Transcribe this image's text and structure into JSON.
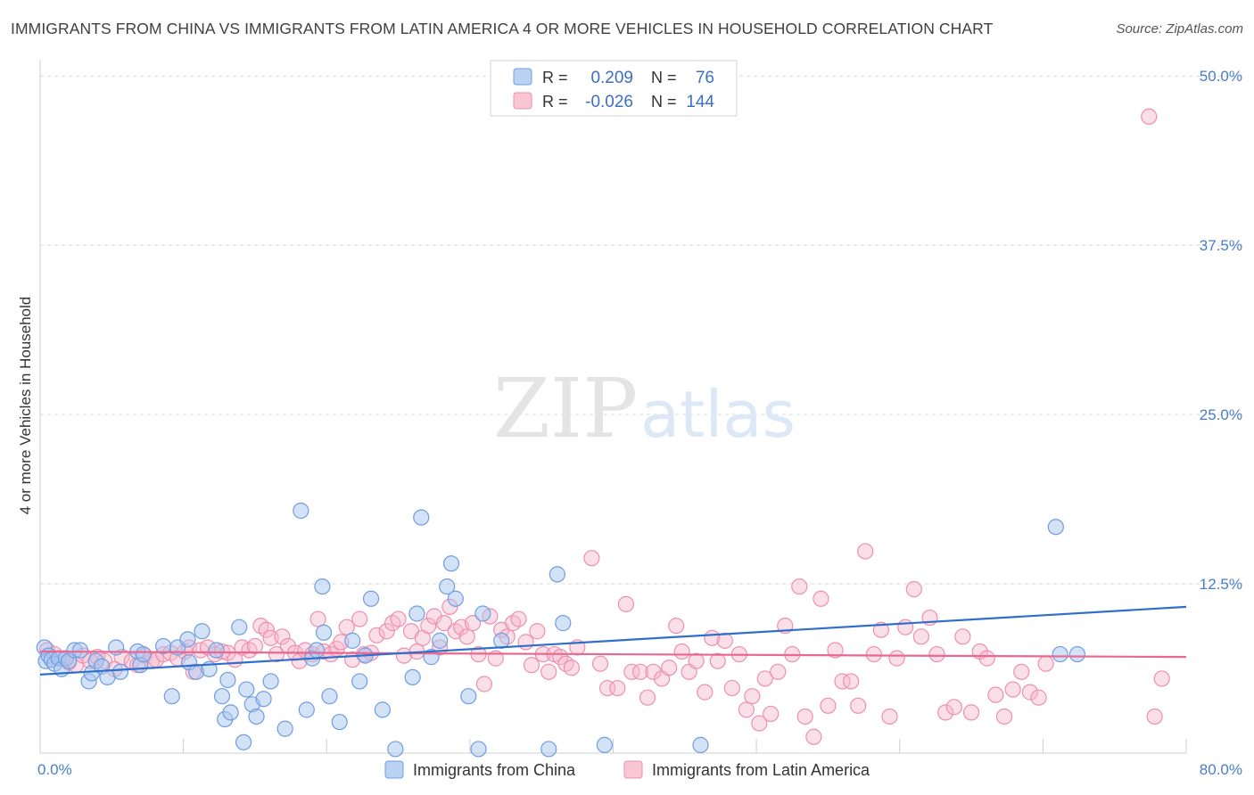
{
  "title": "IMMIGRANTS FROM CHINA VS IMMIGRANTS FROM LATIN AMERICA 4 OR MORE VEHICLES IN HOUSEHOLD CORRELATION CHART",
  "source": "Source: ZipAtlas.com",
  "watermark": {
    "zip": "ZIP",
    "atlas": "atlas"
  },
  "colors": {
    "china_fill": "#a9c6ef",
    "china_stroke": "#6f9ee0",
    "china_line": "#2f6fcc",
    "latam_fill": "#f6b8cb",
    "latam_stroke": "#ee8fae",
    "latam_line": "#e8688f",
    "tick": "#4a7cc9",
    "grid": "#d9d9d9"
  },
  "legend": {
    "rows": [
      {
        "r_label": "R =",
        "r_value": "0.209",
        "n_label": "N =",
        "n_value": "76"
      },
      {
        "r_label": "R =",
        "r_value": "-0.026",
        "n_label": "N =",
        "n_value": "144"
      }
    ]
  },
  "chart_data": {
    "type": "scatter",
    "ylabel": "4 or more Vehicles in Household",
    "x_ticks": [
      "0.0%",
      "80.0%"
    ],
    "y_ticks": [
      "12.5%",
      "25.0%",
      "37.5%",
      "50.0%"
    ],
    "xlim": [
      0,
      80
    ],
    "ylim": [
      0,
      51
    ],
    "grid": true,
    "legend_position": "top-center",
    "series": [
      {
        "name": "Immigrants from China",
        "trend": {
          "x0": 0,
          "y0": 5.8,
          "x1": 80,
          "y1": 10.8
        },
        "points": [
          [
            0.3,
            7.8
          ],
          [
            0.4,
            6.8
          ],
          [
            0.6,
            7.2
          ],
          [
            0.8,
            6.9
          ],
          [
            1.0,
            6.6
          ],
          [
            1.3,
            7.0
          ],
          [
            1.5,
            6.2
          ],
          [
            1.8,
            7.0
          ],
          [
            2.0,
            6.8
          ],
          [
            2.4,
            7.6
          ],
          [
            2.8,
            7.6
          ],
          [
            3.4,
            5.3
          ],
          [
            3.6,
            5.9
          ],
          [
            3.9,
            6.8
          ],
          [
            4.3,
            6.4
          ],
          [
            4.7,
            5.6
          ],
          [
            5.3,
            7.8
          ],
          [
            5.6,
            6.0
          ],
          [
            6.8,
            7.5
          ],
          [
            7.0,
            6.5
          ],
          [
            7.2,
            7.3
          ],
          [
            8.6,
            7.9
          ],
          [
            9.2,
            4.2
          ],
          [
            9.6,
            7.8
          ],
          [
            10.3,
            8.4
          ],
          [
            10.4,
            6.7
          ],
          [
            10.9,
            6.0
          ],
          [
            11.3,
            9.0
          ],
          [
            11.8,
            6.2
          ],
          [
            12.3,
            7.6
          ],
          [
            12.7,
            4.2
          ],
          [
            12.9,
            2.5
          ],
          [
            13.1,
            5.4
          ],
          [
            13.3,
            3.0
          ],
          [
            13.9,
            9.3
          ],
          [
            14.2,
            0.8
          ],
          [
            14.4,
            4.7
          ],
          [
            14.8,
            3.6
          ],
          [
            15.1,
            2.7
          ],
          [
            15.6,
            4.0
          ],
          [
            16.1,
            5.3
          ],
          [
            17.1,
            1.8
          ],
          [
            18.2,
            17.9
          ],
          [
            18.6,
            3.2
          ],
          [
            19.0,
            7.0
          ],
          [
            19.3,
            7.6
          ],
          [
            19.7,
            12.3
          ],
          [
            19.8,
            8.9
          ],
          [
            20.2,
            4.2
          ],
          [
            20.9,
            2.3
          ],
          [
            21.8,
            8.3
          ],
          [
            22.3,
            5.3
          ],
          [
            22.7,
            7.2
          ],
          [
            23.1,
            11.4
          ],
          [
            23.9,
            3.2
          ],
          [
            24.8,
            0.3
          ],
          [
            26.0,
            5.6
          ],
          [
            26.3,
            10.3
          ],
          [
            26.6,
            17.4
          ],
          [
            27.3,
            7.1
          ],
          [
            27.9,
            8.3
          ],
          [
            28.4,
            12.3
          ],
          [
            28.7,
            14.0
          ],
          [
            29.0,
            11.4
          ],
          [
            29.9,
            4.2
          ],
          [
            30.6,
            0.3
          ],
          [
            30.9,
            10.3
          ],
          [
            32.2,
            8.3
          ],
          [
            35.5,
            0.3
          ],
          [
            36.1,
            13.2
          ],
          [
            36.5,
            9.6
          ],
          [
            39.4,
            0.6
          ],
          [
            46.1,
            0.6
          ],
          [
            70.9,
            16.7
          ],
          [
            71.2,
            7.3
          ],
          [
            72.4,
            7.3
          ]
        ]
      },
      {
        "name": "Immigrants from Latin America",
        "trend": {
          "x0": 0,
          "y0": 7.5,
          "x1": 80,
          "y1": 7.1
        },
        "points": [
          [
            0.5,
            7.6
          ],
          [
            1.0,
            7.3
          ],
          [
            1.5,
            7.0
          ],
          [
            2.0,
            6.7
          ],
          [
            2.5,
            6.5
          ],
          [
            3.0,
            7.2
          ],
          [
            3.5,
            6.8
          ],
          [
            4.0,
            7.1
          ],
          [
            4.5,
            6.8
          ],
          [
            5.2,
            6.2
          ],
          [
            5.7,
            7.1
          ],
          [
            6.4,
            6.8
          ],
          [
            6.8,
            6.5
          ],
          [
            7.3,
            7.2
          ],
          [
            7.8,
            6.8
          ],
          [
            8.1,
            6.9
          ],
          [
            8.6,
            7.3
          ],
          [
            9.1,
            7.4
          ],
          [
            9.6,
            7.0
          ],
          [
            10.1,
            7.5
          ],
          [
            10.4,
            7.8
          ],
          [
            10.7,
            6.0
          ],
          [
            11.2,
            7.6
          ],
          [
            11.7,
            7.8
          ],
          [
            12.2,
            7.3
          ],
          [
            12.7,
            7.5
          ],
          [
            13.1,
            7.4
          ],
          [
            13.6,
            6.9
          ],
          [
            14.1,
            7.8
          ],
          [
            14.6,
            7.6
          ],
          [
            15.0,
            7.9
          ],
          [
            15.4,
            9.4
          ],
          [
            15.8,
            9.1
          ],
          [
            16.1,
            8.5
          ],
          [
            16.5,
            7.3
          ],
          [
            16.9,
            8.6
          ],
          [
            17.3,
            7.9
          ],
          [
            17.8,
            7.4
          ],
          [
            18.1,
            6.8
          ],
          [
            18.5,
            7.6
          ],
          [
            19.0,
            7.3
          ],
          [
            19.4,
            9.9
          ],
          [
            19.8,
            7.5
          ],
          [
            20.3,
            7.3
          ],
          [
            20.7,
            7.7
          ],
          [
            21.0,
            8.2
          ],
          [
            21.4,
            9.3
          ],
          [
            21.8,
            6.9
          ],
          [
            22.3,
            9.9
          ],
          [
            22.6,
            7.3
          ],
          [
            23.1,
            7.4
          ],
          [
            23.5,
            8.7
          ],
          [
            24.2,
            9.0
          ],
          [
            24.6,
            9.6
          ],
          [
            25.0,
            9.9
          ],
          [
            25.4,
            7.2
          ],
          [
            25.9,
            9.0
          ],
          [
            26.3,
            7.5
          ],
          [
            26.7,
            8.5
          ],
          [
            27.1,
            9.4
          ],
          [
            27.5,
            10.1
          ],
          [
            27.9,
            7.8
          ],
          [
            28.2,
            9.6
          ],
          [
            28.6,
            10.8
          ],
          [
            29.0,
            9.0
          ],
          [
            29.4,
            9.3
          ],
          [
            29.8,
            8.6
          ],
          [
            30.2,
            9.6
          ],
          [
            30.6,
            7.3
          ],
          [
            31.0,
            5.1
          ],
          [
            31.4,
            10.1
          ],
          [
            31.8,
            7.0
          ],
          [
            32.2,
            9.1
          ],
          [
            32.6,
            8.6
          ],
          [
            33.0,
            9.6
          ],
          [
            33.4,
            9.9
          ],
          [
            33.9,
            8.2
          ],
          [
            34.3,
            6.5
          ],
          [
            34.7,
            9.0
          ],
          [
            35.1,
            7.3
          ],
          [
            35.5,
            6.0
          ],
          [
            35.9,
            7.3
          ],
          [
            36.3,
            7.1
          ],
          [
            36.7,
            6.6
          ],
          [
            37.1,
            6.3
          ],
          [
            37.5,
            7.8
          ],
          [
            38.5,
            14.4
          ],
          [
            39.1,
            6.6
          ],
          [
            39.6,
            4.8
          ],
          [
            40.3,
            4.8
          ],
          [
            40.9,
            11.0
          ],
          [
            41.3,
            6.0
          ],
          [
            41.9,
            6.0
          ],
          [
            42.4,
            4.1
          ],
          [
            42.8,
            6.0
          ],
          [
            43.4,
            5.5
          ],
          [
            43.9,
            6.3
          ],
          [
            44.4,
            9.4
          ],
          [
            44.8,
            7.5
          ],
          [
            45.3,
            6.0
          ],
          [
            45.8,
            6.8
          ],
          [
            46.4,
            4.5
          ],
          [
            46.9,
            8.5
          ],
          [
            47.3,
            6.8
          ],
          [
            47.8,
            8.3
          ],
          [
            48.3,
            4.8
          ],
          [
            48.8,
            7.3
          ],
          [
            49.3,
            3.2
          ],
          [
            49.7,
            4.2
          ],
          [
            50.2,
            2.2
          ],
          [
            50.6,
            5.5
          ],
          [
            51.0,
            2.9
          ],
          [
            51.5,
            6.0
          ],
          [
            52.0,
            9.4
          ],
          [
            52.5,
            7.3
          ],
          [
            53.0,
            12.3
          ],
          [
            53.4,
            2.7
          ],
          [
            54.0,
            1.2
          ],
          [
            54.5,
            11.4
          ],
          [
            55.0,
            3.5
          ],
          [
            55.5,
            7.6
          ],
          [
            56.0,
            5.3
          ],
          [
            56.6,
            5.3
          ],
          [
            57.1,
            3.5
          ],
          [
            57.6,
            14.9
          ],
          [
            58.2,
            7.3
          ],
          [
            58.7,
            9.1
          ],
          [
            59.3,
            2.7
          ],
          [
            59.8,
            7.0
          ],
          [
            60.4,
            9.3
          ],
          [
            61.0,
            12.1
          ],
          [
            61.5,
            8.6
          ],
          [
            62.1,
            10.0
          ],
          [
            62.6,
            7.3
          ],
          [
            63.2,
            3.0
          ],
          [
            63.8,
            3.4
          ],
          [
            64.4,
            8.6
          ],
          [
            65.0,
            3.0
          ],
          [
            65.6,
            7.5
          ],
          [
            66.1,
            7.0
          ],
          [
            66.7,
            4.3
          ],
          [
            67.3,
            2.7
          ],
          [
            67.9,
            4.7
          ],
          [
            68.5,
            6.0
          ],
          [
            69.1,
            4.5
          ],
          [
            69.7,
            4.1
          ],
          [
            70.2,
            6.6
          ],
          [
            77.4,
            47.0
          ],
          [
            77.8,
            2.7
          ],
          [
            78.3,
            5.5
          ]
        ]
      }
    ]
  },
  "bottom_legend": [
    {
      "label": "Immigrants from China"
    },
    {
      "label": "Immigrants from Latin America"
    }
  ]
}
